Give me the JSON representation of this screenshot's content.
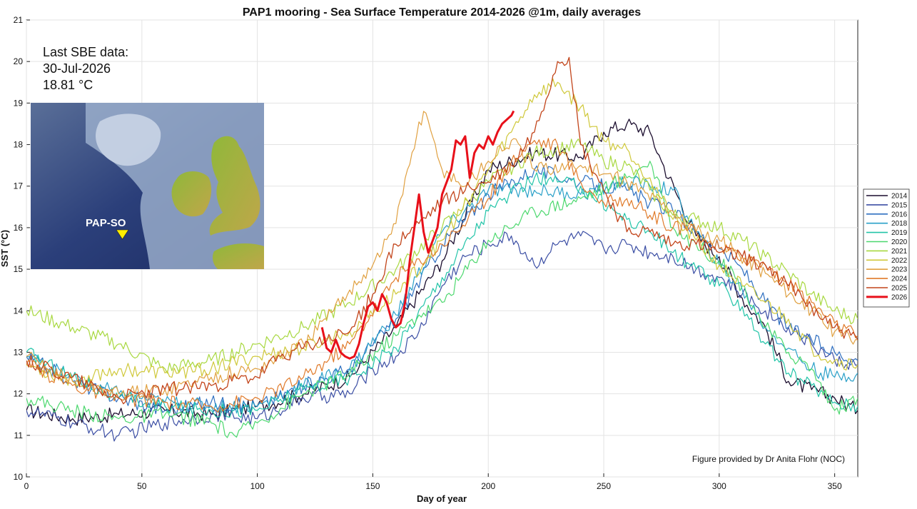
{
  "chart_data": {
    "type": "line",
    "title": "PAP1 mooring - Sea Surface Temperature 2014-2026 @1m, daily averages",
    "xlabel": "Day of year",
    "ylabel": "SST (°C)",
    "xlim": [
      0,
      360
    ],
    "ylim": [
      10,
      21
    ],
    "xticks": [
      0,
      50,
      100,
      150,
      200,
      250,
      300,
      350
    ],
    "yticks": [
      10,
      11,
      12,
      13,
      14,
      15,
      16,
      17,
      18,
      19,
      20,
      21
    ],
    "grid": true,
    "legend_position": "right",
    "annotation": {
      "line1": "Last SBE data:",
      "line2": "30-Jul-2026",
      "line3": "18.81 °C"
    },
    "credit": "Figure provided by Dr Anita Flohr (NOC)",
    "inset_map": {
      "label": "PAP-SO"
    },
    "series": [
      {
        "name": "2014",
        "color": "#1b0d2e",
        "width": 1.3,
        "x": [
          0,
          20,
          40,
          60,
          80,
          100,
          120,
          140,
          160,
          180,
          200,
          220,
          240,
          250,
          260,
          270,
          275,
          290,
          300,
          310,
          320,
          330,
          340,
          350,
          360
        ],
        "y": [
          11.6,
          11.4,
          11.5,
          11.6,
          11.5,
          11.7,
          12.0,
          12.4,
          13.6,
          15.2,
          17.4,
          17.8,
          17.7,
          18.3,
          18.5,
          18.3,
          17.6,
          15.8,
          15.3,
          14.3,
          13.6,
          12.3,
          12.1,
          11.9,
          11.6
        ]
      },
      {
        "name": "2015",
        "color": "#3b4ea4",
        "width": 1.2,
        "x": [
          0,
          20,
          40,
          60,
          80,
          100,
          120,
          140,
          150,
          160,
          170,
          180,
          190,
          200,
          210,
          220,
          230,
          240,
          250,
          260,
          270,
          280,
          290,
          300,
          310,
          320,
          330,
          340,
          350,
          360
        ],
        "y": [
          11.6,
          11.3,
          11.0,
          11.3,
          11.5,
          11.4,
          11.9,
          12.0,
          12.6,
          12.9,
          13.5,
          14.6,
          15.3,
          15.6,
          15.8,
          15.1,
          15.6,
          15.8,
          15.5,
          15.6,
          15.4,
          15.3,
          15.0,
          14.8,
          14.4,
          14.0,
          13.6,
          13.2,
          12.8,
          12.7
        ]
      },
      {
        "name": "2016",
        "color": "#2e6fc0",
        "width": 1.2,
        "x": [
          0,
          20,
          40,
          60,
          80,
          100,
          120,
          140,
          160,
          180,
          200,
          220,
          240,
          260,
          270,
          280,
          290,
          300,
          310,
          320,
          330,
          340,
          350,
          360
        ],
        "y": [
          12.9,
          12.3,
          11.9,
          11.6,
          11.8,
          11.7,
          12.2,
          12.6,
          13.8,
          15.6,
          16.8,
          17.4,
          17.1,
          16.9,
          16.6,
          16.4,
          15.9,
          15.5,
          15.0,
          14.2,
          13.6,
          13.3,
          13.0,
          12.8
        ]
      },
      {
        "name": "2018",
        "color": "#2aa0c8",
        "width": 1.2,
        "x": [
          0,
          20,
          40,
          60,
          80,
          100,
          120,
          140,
          160,
          180,
          200,
          220,
          240,
          260,
          270,
          280,
          290,
          300,
          310,
          320,
          330,
          340,
          350,
          360
        ],
        "y": [
          12.9,
          12.4,
          12.0,
          11.8,
          11.7,
          11.7,
          12.2,
          12.6,
          13.9,
          15.9,
          16.9,
          16.9,
          16.8,
          17.1,
          17.0,
          16.9,
          15.9,
          15.1,
          14.5,
          13.6,
          13.1,
          12.6,
          12.4,
          12.5
        ]
      },
      {
        "name": "2019",
        "color": "#22c4a8",
        "width": 1.2,
        "x": [
          0,
          20,
          40,
          60,
          80,
          100,
          120,
          140,
          160,
          180,
          200,
          220,
          240,
          260,
          270,
          280,
          290,
          300,
          310,
          320,
          330,
          340,
          350,
          360
        ],
        "y": [
          13.0,
          12.4,
          11.9,
          11.7,
          11.6,
          11.6,
          12.1,
          12.4,
          13.1,
          14.8,
          16.4,
          17.2,
          17.0,
          16.2,
          15.9,
          15.4,
          15.0,
          14.6,
          14.1,
          13.2,
          12.5,
          12.2,
          11.8,
          11.7
        ]
      },
      {
        "name": "2020",
        "color": "#4cd86e",
        "width": 1.2,
        "x": [
          0,
          20,
          40,
          60,
          80,
          90,
          100,
          120,
          140,
          160,
          170,
          180,
          200,
          220,
          240,
          260,
          270,
          280,
          290,
          300,
          310,
          320,
          330,
          340,
          350,
          360
        ],
        "y": [
          11.9,
          11.6,
          11.4,
          11.5,
          11.3,
          11.0,
          11.3,
          12.0,
          12.5,
          13.4,
          13.9,
          14.2,
          15.7,
          16.4,
          16.7,
          17.2,
          17.6,
          16.0,
          15.6,
          15.2,
          14.6,
          13.6,
          13.0,
          12.6,
          11.6,
          11.9
        ]
      },
      {
        "name": "2021",
        "color": "#a8d840",
        "width": 1.2,
        "x": [
          0,
          20,
          40,
          60,
          80,
          100,
          120,
          140,
          160,
          180,
          200,
          220,
          240,
          250,
          260,
          270,
          280,
          290,
          300,
          310,
          320,
          330,
          340,
          350,
          360
        ],
        "y": [
          14.0,
          13.6,
          13.2,
          12.6,
          12.8,
          13.2,
          13.6,
          14.2,
          15.0,
          16.0,
          17.1,
          17.8,
          18.0,
          17.6,
          17.5,
          16.9,
          16.3,
          16.2,
          16.0,
          15.7,
          15.3,
          14.9,
          14.4,
          14.0,
          13.8
        ]
      },
      {
        "name": "2022",
        "color": "#cfc83a",
        "width": 1.2,
        "x": [
          0,
          20,
          40,
          60,
          80,
          100,
          120,
          140,
          160,
          180,
          200,
          210,
          220,
          230,
          240,
          250,
          260,
          270,
          280,
          290,
          300,
          310,
          320,
          330,
          340,
          350,
          360
        ],
        "y": [
          12.7,
          12.3,
          12.6,
          12.5,
          12.6,
          12.9,
          13.1,
          13.5,
          14.4,
          15.7,
          17.4,
          18.3,
          19.2,
          19.5,
          18.9,
          18.1,
          17.9,
          17.2,
          16.2,
          15.7,
          15.1,
          14.6,
          14.2,
          13.8,
          13.1,
          12.8,
          12.7
        ]
      },
      {
        "name": "2023",
        "color": "#e0a040",
        "width": 1.2,
        "x": [
          0,
          20,
          40,
          60,
          80,
          100,
          120,
          130,
          140,
          150,
          160,
          165,
          172,
          180,
          190,
          200,
          210,
          220,
          240,
          260,
          280,
          290,
          300,
          320,
          340,
          350,
          360
        ],
        "y": [
          12.9,
          12.3,
          12.0,
          12.1,
          12.4,
          12.6,
          13.2,
          13.8,
          14.5,
          15.1,
          16.1,
          17.4,
          18.8,
          17.4,
          17.0,
          17.6,
          18.1,
          17.4,
          17.5,
          17.1,
          16.4,
          15.9,
          15.7,
          14.9,
          14.0,
          13.5,
          13.3
        ]
      },
      {
        "name": "2024",
        "color": "#e07a2a",
        "width": 1.2,
        "x": [
          0,
          20,
          40,
          60,
          80,
          100,
          120,
          140,
          160,
          180,
          200,
          210,
          220,
          230,
          240,
          250,
          260,
          270,
          280,
          290,
          300,
          310,
          320,
          340,
          350,
          360
        ],
        "y": [
          12.7,
          12.2,
          11.9,
          11.8,
          11.7,
          11.9,
          12.4,
          13.2,
          14.8,
          15.6,
          16.7,
          17.6,
          18.1,
          18.0,
          17.1,
          16.6,
          16.7,
          16.3,
          16.0,
          15.9,
          15.5,
          15.3,
          15.1,
          14.2,
          13.7,
          13.4
        ]
      },
      {
        "name": "2025",
        "color": "#c2441a",
        "width": 1.3,
        "x": [
          0,
          20,
          40,
          60,
          80,
          100,
          110,
          120,
          140,
          150,
          160,
          170,
          180,
          190,
          200,
          210,
          220,
          230,
          235,
          240,
          250,
          260,
          270,
          280,
          290,
          300,
          310,
          320,
          330,
          340,
          350,
          360
        ],
        "y": [
          12.8,
          12.4,
          11.9,
          12.1,
          12.2,
          12.4,
          12.9,
          13.1,
          13.5,
          14.4,
          15.6,
          16.1,
          16.6,
          16.9,
          17.1,
          17.5,
          18.3,
          20.0,
          20.1,
          18.0,
          16.9,
          15.9,
          15.9,
          15.6,
          15.6,
          15.4,
          15.3,
          15.1,
          14.6,
          14.1,
          13.6,
          13.3
        ]
      },
      {
        "name": "2026",
        "color": "#e8101a",
        "width": 3.0,
        "x": [
          128,
          130,
          132,
          134,
          136,
          138,
          140,
          142,
          144,
          146,
          148,
          150,
          152,
          154,
          156,
          158,
          160,
          162,
          164,
          166,
          168,
          170,
          172,
          174,
          176,
          178,
          180,
          182,
          184,
          186,
          188,
          190,
          192,
          194,
          196,
          198,
          200,
          202,
          204,
          206,
          208,
          210,
          211
        ],
        "y": [
          13.6,
          13.1,
          13.0,
          13.3,
          13.0,
          12.9,
          12.85,
          12.9,
          13.2,
          13.7,
          14.1,
          14.2,
          14.0,
          14.4,
          14.2,
          13.8,
          13.6,
          13.7,
          14.2,
          15.2,
          16.0,
          16.8,
          15.9,
          15.4,
          15.7,
          16.0,
          16.8,
          17.1,
          17.4,
          18.1,
          18.0,
          18.2,
          17.2,
          17.8,
          18.0,
          17.9,
          18.2,
          18.0,
          18.3,
          18.5,
          18.6,
          18.7,
          18.81
        ]
      }
    ]
  }
}
